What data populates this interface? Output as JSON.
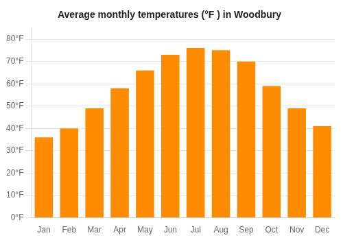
{
  "chart_data": {
    "type": "bar",
    "title": "Average monthly temperatures (°F ) in Woodbury",
    "categories": [
      "Jan",
      "Feb",
      "Mar",
      "Apr",
      "May",
      "Jun",
      "Jul",
      "Aug",
      "Sep",
      "Oct",
      "Nov",
      "Dec"
    ],
    "values": [
      36,
      40,
      49,
      58,
      66,
      73,
      76,
      75,
      70,
      59,
      49,
      41
    ],
    "color": "#FF8C00",
    "ylim": [
      0,
      85
    ],
    "yticks": [
      {
        "value": 0,
        "label": "0°F"
      },
      {
        "value": 10,
        "label": "10°F"
      },
      {
        "value": 20,
        "label": "20°F"
      },
      {
        "value": 30,
        "label": "30°F"
      },
      {
        "value": 40,
        "label": "40°F"
      },
      {
        "value": 50,
        "label": "50°F"
      },
      {
        "value": 60,
        "label": "60°F"
      },
      {
        "value": 70,
        "label": "70°F"
      },
      {
        "value": 80,
        "label": "80°F"
      }
    ],
    "grid": true
  }
}
